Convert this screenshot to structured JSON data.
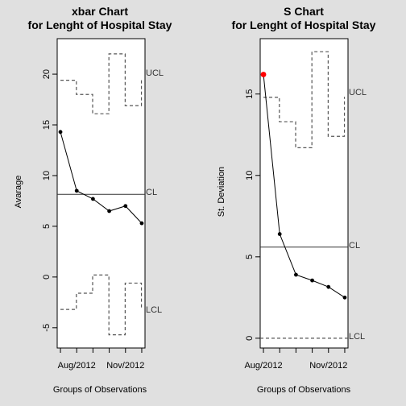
{
  "chart_data": [
    {
      "type": "line",
      "title_line1": "xbar Chart",
      "title_line2": "for Lenght of Hospital Stay",
      "xlabel": "Groups of Observations",
      "ylabel": "Avarage",
      "x_tick_labels": [
        "Aug/2012",
        "Nov/2012"
      ],
      "x_tick_label_groups": [
        1,
        4
      ],
      "groups": [
        0,
        1,
        2,
        3,
        4,
        5
      ],
      "values": [
        14.3,
        8.5,
        7.7,
        6.5,
        7.0,
        5.3
      ],
      "center_line": 8.15,
      "ucl": [
        19.4,
        18.0,
        16.1,
        22.0,
        16.9,
        19.4
      ],
      "lcl": [
        -3.2,
        -1.6,
        0.2,
        -5.7,
        -0.6,
        -3.2
      ],
      "yticks": [
        -5,
        0,
        5,
        10,
        15,
        20
      ],
      "ylim": [
        -7.0,
        23.5
      ],
      "xlim": [
        -0.2,
        5.2
      ],
      "label_ucl": "UCL",
      "label_cl": "CL",
      "label_lcl": "LCL",
      "point_color": "#000000",
      "highlight_points": []
    },
    {
      "type": "line",
      "title_line1": "S Chart",
      "title_line2": "for Lenght of Hospital Stay",
      "xlabel": "Groups of Observations",
      "ylabel": "St. Deviation",
      "x_tick_labels": [
        "Aug/2012",
        "Nov/2012"
      ],
      "x_tick_label_groups": [
        0,
        4
      ],
      "groups": [
        0,
        1,
        2,
        3,
        4,
        5
      ],
      "values": [
        16.2,
        6.4,
        3.9,
        3.55,
        3.15,
        2.5
      ],
      "center_line": 5.6,
      "ucl": [
        14.8,
        13.3,
        11.7,
        17.6,
        12.4,
        14.8
      ],
      "lcl": [
        0,
        0,
        0,
        0,
        0,
        0
      ],
      "yticks": [
        0,
        5,
        10,
        15
      ],
      "ylim": [
        -0.6,
        18.4
      ],
      "xlim": [
        -0.2,
        5.2
      ],
      "label_ucl": "UCL",
      "label_cl": "CL",
      "label_lcl": "LCL",
      "point_color": "#000000",
      "highlight_points": [
        0
      ],
      "highlight_color": "#ff0000"
    }
  ]
}
